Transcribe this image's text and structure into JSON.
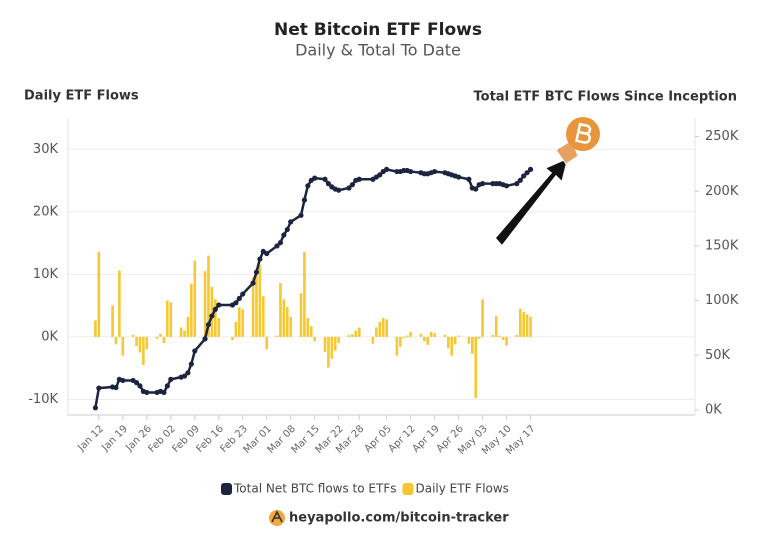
{
  "chart_data": {
    "type": "combo",
    "title": "Net Bitcoin ETF Flows",
    "subtitle": "Daily & Total To Date",
    "y_label": "Daily ETF Flows",
    "y2_label": "Total ETF BTC Flows Since Inception",
    "source": "heyapollo.com/bitcoin-tracker",
    "x": [
      11,
      12,
      16,
      17,
      18,
      19,
      22,
      23,
      24,
      25,
      26,
      29,
      30,
      31,
      32,
      33,
      36,
      37,
      38,
      39,
      40,
      43,
      44,
      45,
      46,
      47,
      51,
      52,
      53,
      54,
      57,
      58,
      59,
      60,
      61,
      64,
      65,
      66,
      67,
      68,
      71,
      72,
      73,
      74,
      75,
      78,
      79,
      80,
      81,
      82,
      85,
      86,
      87,
      88,
      92,
      93,
      94,
      95,
      96,
      99,
      100,
      101,
      102,
      103,
      106,
      107,
      108,
      109,
      110,
      113,
      114,
      115,
      116,
      117,
      120,
      121,
      122,
      123,
      124,
      127,
      128,
      129,
      130,
      131,
      134,
      135,
      136,
      137,
      138
    ],
    "xlim": [
      3,
      186
    ],
    "xticks": [
      {
        "value": 12,
        "label": "Jan 12"
      },
      {
        "value": 19,
        "label": "Jan 19"
      },
      {
        "value": 26,
        "label": "Jan 26"
      },
      {
        "value": 33,
        "label": "Feb 02"
      },
      {
        "value": 40,
        "label": "Feb 09"
      },
      {
        "value": 47,
        "label": "Feb 16"
      },
      {
        "value": 54,
        "label": "Feb 23"
      },
      {
        "value": 61,
        "label": "Mar 01"
      },
      {
        "value": 68,
        "label": "Mar 08"
      },
      {
        "value": 75,
        "label": "Mar 15"
      },
      {
        "value": 82,
        "label": "Mar 22"
      },
      {
        "value": 88,
        "label": "Mar 28"
      },
      {
        "value": 96,
        "label": "Apr 05"
      },
      {
        "value": 103,
        "label": "Apr 12"
      },
      {
        "value": 110,
        "label": "Apr 19"
      },
      {
        "value": 117,
        "label": "Apr 26"
      },
      {
        "value": 124,
        "label": "May 03"
      },
      {
        "value": 131,
        "label": "May 10"
      },
      {
        "value": 138,
        "label": "May 17"
      }
    ],
    "ylim": [
      -12500,
      35000
    ],
    "yticks": [
      {
        "value": -10000,
        "label": "-10K"
      },
      {
        "value": 0,
        "label": "0K"
      },
      {
        "value": 10000,
        "label": "10K"
      },
      {
        "value": 20000,
        "label": "20K"
      },
      {
        "value": 30000,
        "label": "30K"
      }
    ],
    "y2lim": [
      -4600,
      267000
    ],
    "y2ticks": [
      {
        "value": 0,
        "label": "0K"
      },
      {
        "value": 50000,
        "label": "50K"
      },
      {
        "value": 100000,
        "label": "100K"
      },
      {
        "value": 150000,
        "label": "150K"
      },
      {
        "value": 200000,
        "label": "200K"
      },
      {
        "value": 250000,
        "label": "250K"
      }
    ],
    "grid": true,
    "series": [
      {
        "name": "Total Net BTC flows to ETFs",
        "type": "line",
        "axis": "y2",
        "color": "#1c2440",
        "values": [
          2000,
          20000,
          21000,
          20500,
          28000,
          27000,
          27000,
          25000,
          22000,
          17000,
          16000,
          16000,
          17000,
          16000,
          22000,
          28000,
          30000,
          31000,
          34000,
          42000,
          54000,
          65000,
          78000,
          86000,
          92000,
          96000,
          96000,
          98000,
          102000,
          106000,
          116000,
          126000,
          138000,
          145000,
          143000,
          150000,
          153000,
          160000,
          165000,
          172000,
          178000,
          192000,
          205000,
          210000,
          212000,
          211000,
          207000,
          204000,
          202000,
          201000,
          203000,
          206000,
          210000,
          211000,
          211000,
          213000,
          215000,
          218000,
          220000,
          218000,
          218000,
          219000,
          219000,
          218000,
          217000,
          216000,
          216000,
          217000,
          218000,
          217000,
          216000,
          215000,
          214000,
          213000,
          211000,
          203000,
          202000,
          206000,
          207000,
          207000,
          207000,
          207000,
          206000,
          205000,
          207000,
          210000,
          214000,
          217000,
          220000
        ]
      },
      {
        "name": "Daily ETF Flows",
        "type": "bar",
        "color": "#f5c730",
        "values": [
          2600,
          13600,
          5000,
          -1200,
          10600,
          -3000,
          300,
          -1500,
          -2500,
          -4500,
          -2000,
          -300,
          500,
          -1000,
          5800,
          5500,
          1500,
          1000,
          3200,
          8500,
          12200,
          10500,
          13000,
          8000,
          6000,
          3000,
          -500,
          2400,
          4700,
          4400,
          9500,
          10500,
          11500,
          6500,
          -2000,
          200,
          8600,
          6000,
          4800,
          3200,
          7000,
          13600,
          3000,
          1700,
          -700,
          -2400,
          -4900,
          -3500,
          -2200,
          -1000,
          300,
          400,
          1000,
          1500,
          -1100,
          1500,
          2400,
          3000,
          2800,
          -3000,
          -1600,
          -200,
          200,
          800,
          500,
          -700,
          -1300,
          800,
          600,
          300,
          -1800,
          -3000,
          -1200,
          200,
          -1100,
          -2700,
          -9800,
          -300,
          6000,
          300,
          3300,
          200,
          -500,
          -1400,
          300,
          4500,
          4000,
          3600,
          3200
        ]
      }
    ]
  }
}
